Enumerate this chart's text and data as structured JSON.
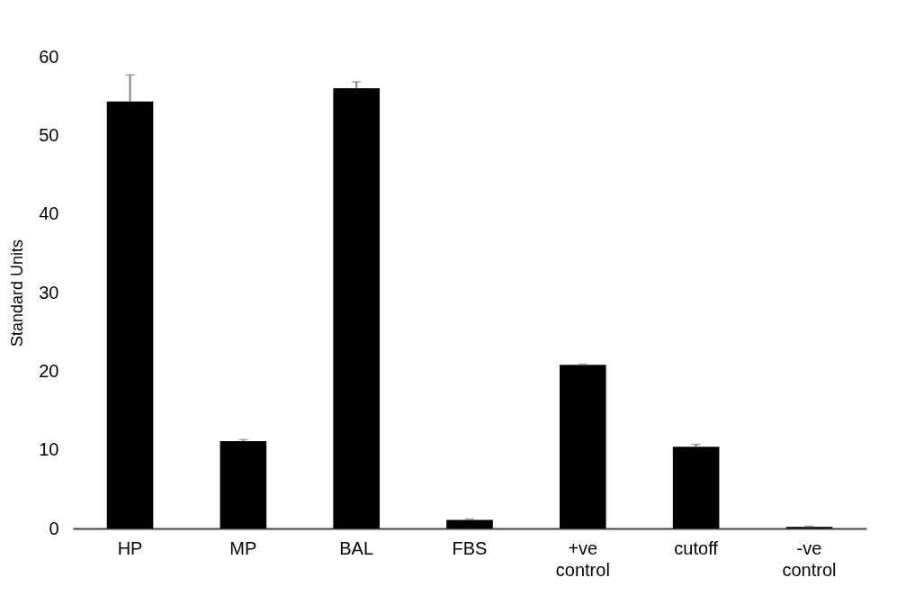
{
  "chart_data": {
    "type": "bar",
    "ylabel": "Standard Units",
    "categories": [
      "HP",
      "MP",
      "BAL",
      "FBS",
      "+ve control",
      "cutoff",
      "-ve control"
    ],
    "values": [
      54.3,
      11.1,
      56.0,
      1.1,
      20.8,
      10.4,
      0.2
    ],
    "errors": [
      [
        54.3,
        57.7
      ],
      [
        11.1,
        11.3
      ],
      [
        56.0,
        56.8
      ],
      [
        1.1,
        1.2
      ],
      [
        20.8,
        20.9
      ],
      [
        10.4,
        10.7
      ],
      [
        0.2,
        0.3
      ]
    ],
    "color": "#000000",
    "ylim": [
      0,
      60
    ],
    "yticks": [
      0,
      10,
      20,
      30,
      40,
      50,
      60
    ]
  }
}
